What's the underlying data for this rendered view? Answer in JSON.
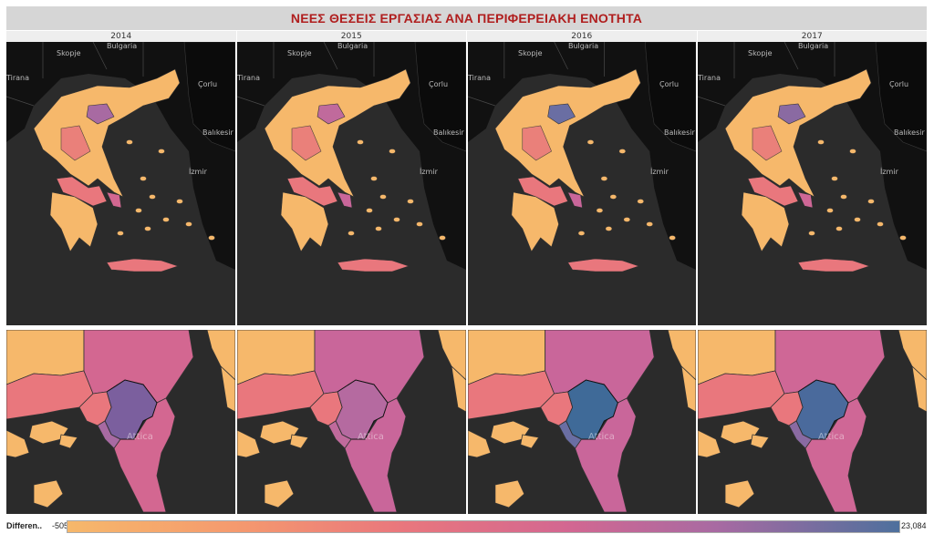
{
  "title": "ΝΕΕΣ ΘΕΣΕΙΣ ΕΡΓΑΣΙΑΣ ΑΝΑ ΠΕΡΙΦΕΡΕΙΑΚΗ ΕΝΟΤΗΤΑ",
  "years": [
    "2014",
    "2015",
    "2016",
    "2017"
  ],
  "map_labels": {
    "skopje": "Skopje",
    "bulgaria": "Bulgaria",
    "tirana": "Tirana",
    "corlu": "Çorlu",
    "balikesir": "Balıkesir",
    "izmir": "İzmir",
    "attica": "Attica"
  },
  "legend": {
    "label": "Differen..",
    "min": "-505",
    "max": "23,084"
  },
  "colors": {
    "low": "#f6b86b",
    "mid_low": "#e9777d",
    "mid": "#d36791",
    "high": "#a86aa2",
    "max": "#4e709d",
    "sea": "#2b2b2b",
    "land_other": "#111111"
  },
  "panels": [
    {
      "year": "2014",
      "thessaloniki": "#a86aa2",
      "athens": "#7b5f9e",
      "attica": "#d36791"
    },
    {
      "year": "2015",
      "thessaloniki": "#c06a9c",
      "athens": "#b56aa0",
      "attica": "#c9669a"
    },
    {
      "year": "2016",
      "thessaloniki": "#6a6ea3",
      "athens": "#3f6a98",
      "attica": "#c9669a"
    },
    {
      "year": "2017",
      "thessaloniki": "#8a6aa2",
      "athens": "#4a6a9c",
      "attica": "#cf6796"
    }
  ]
}
